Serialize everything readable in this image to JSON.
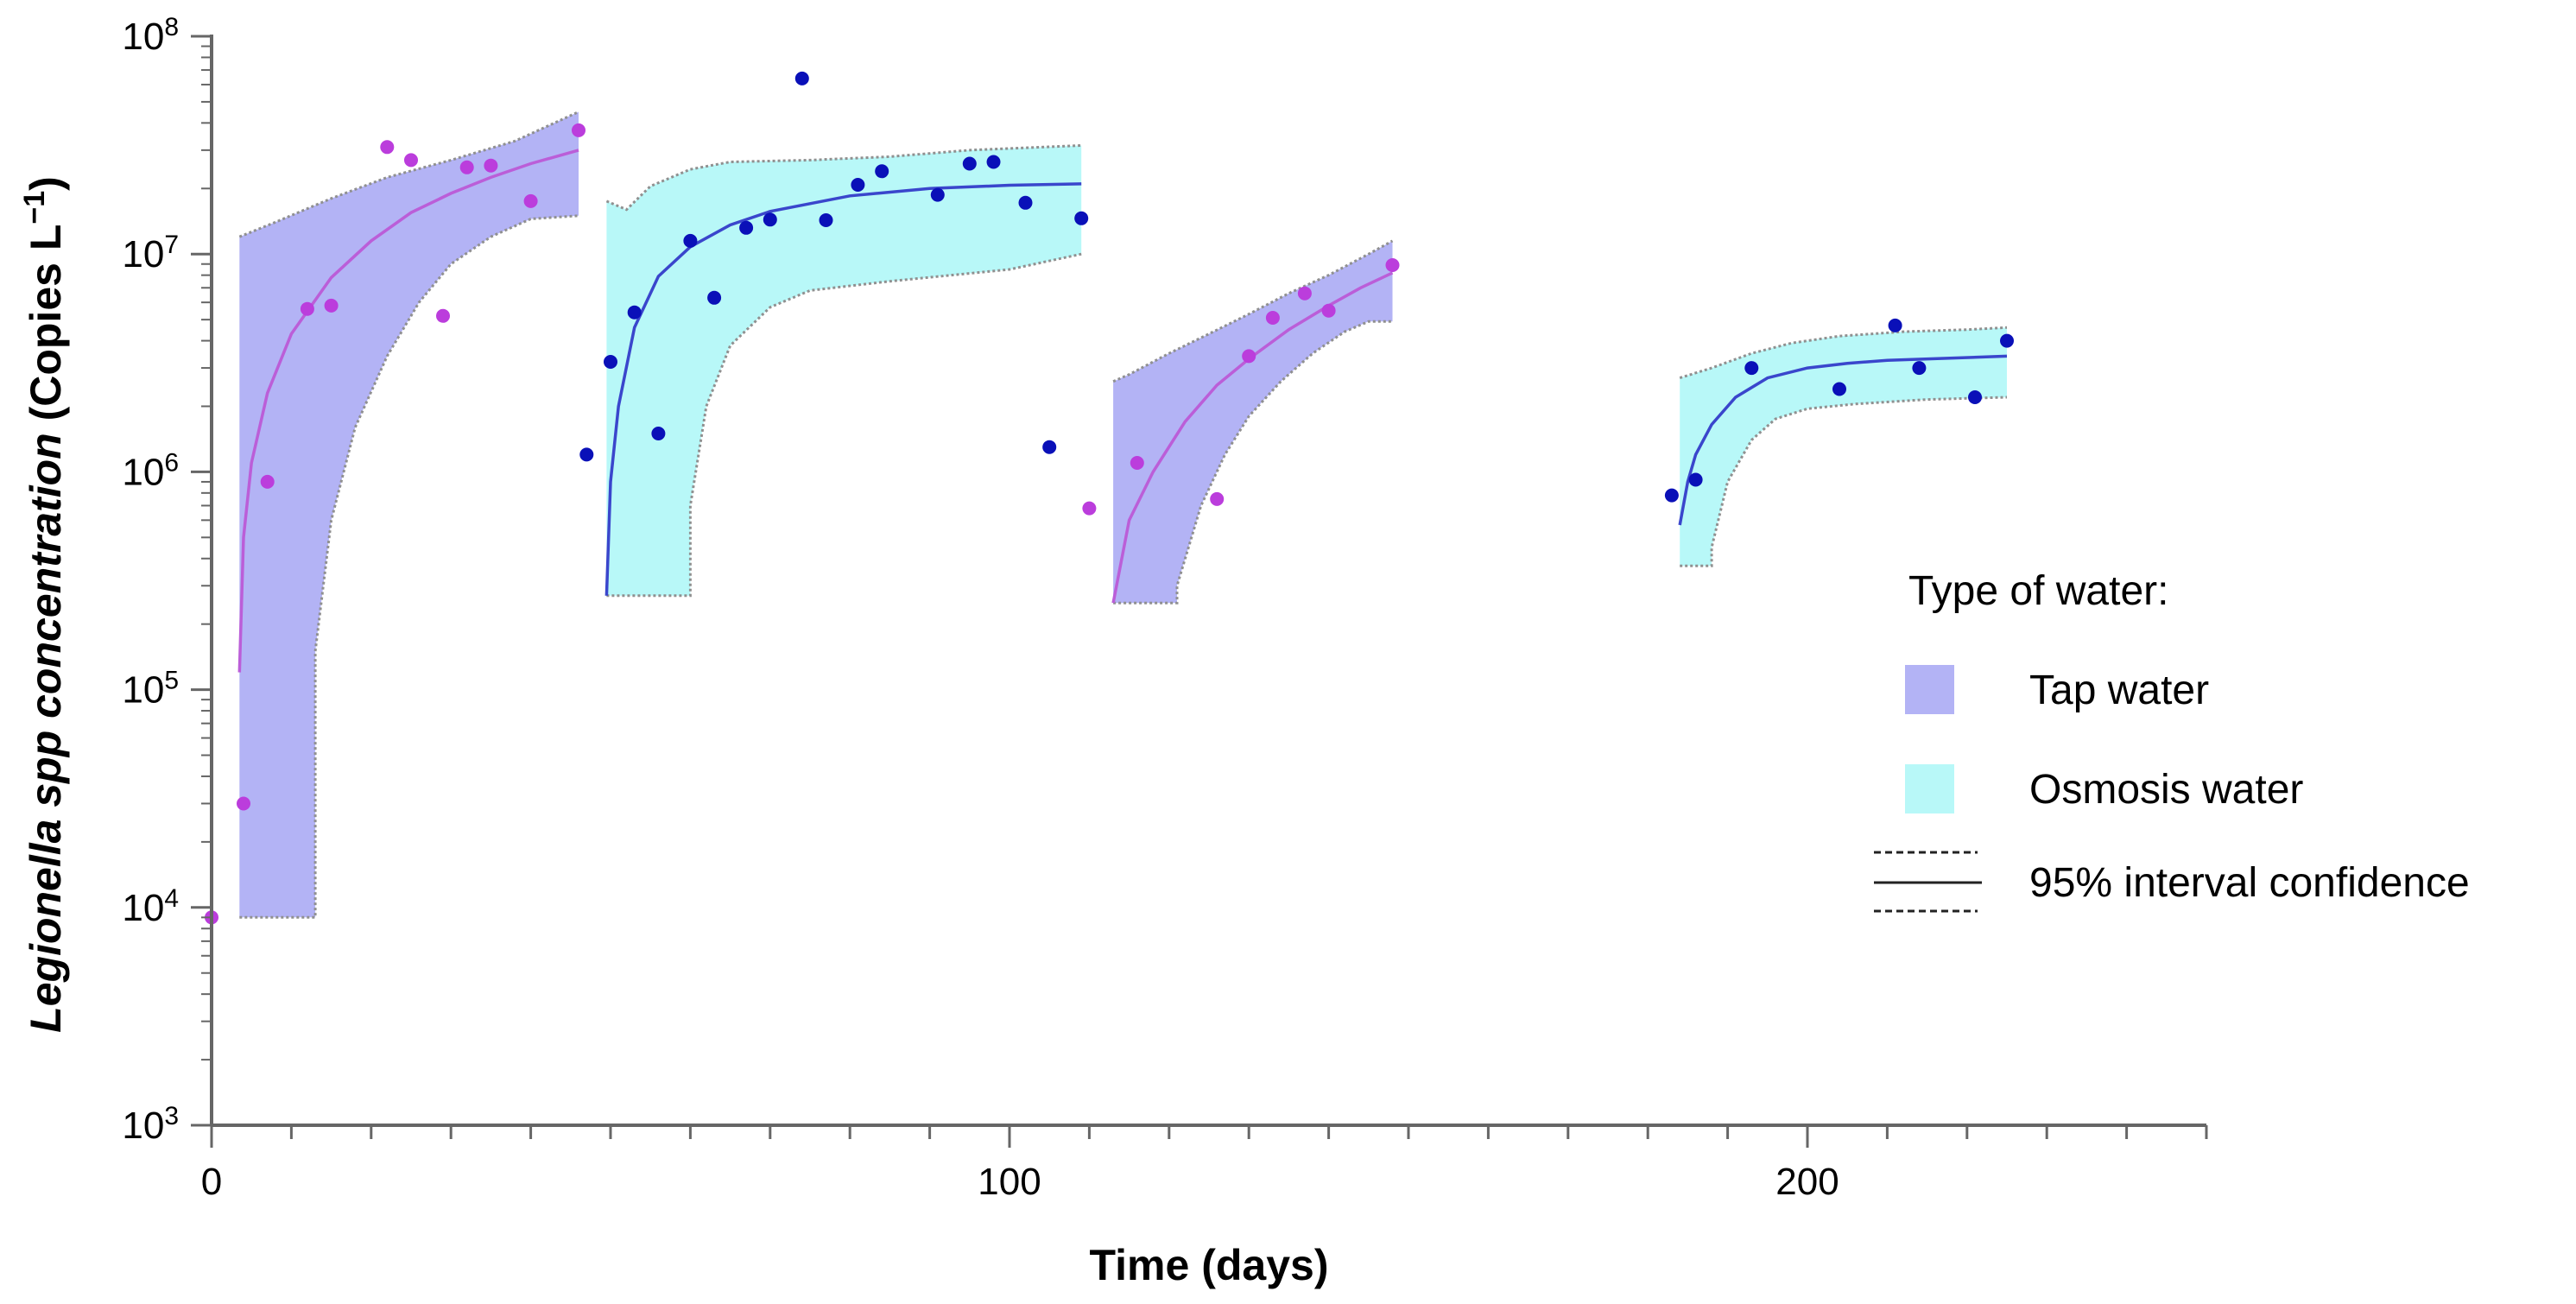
{
  "chart_data": {
    "type": "scatter",
    "xlabel": "Time (days)",
    "ylabel": {
      "italic": "Legionella spp concentration",
      "normal": " (Copies L",
      "sup": "−1",
      "close": ")"
    },
    "xlim": [
      0,
      250
    ],
    "ylim_exp": [
      3,
      8
    ],
    "x_ticks": [
      {
        "value": 0,
        "label": "0"
      },
      {
        "value": 100,
        "label": "100"
      },
      {
        "value": 200,
        "label": "200"
      }
    ],
    "x_minor_step": 10,
    "y_ticks": [
      {
        "exp": 3,
        "base": "10",
        "sup": "3"
      },
      {
        "exp": 4,
        "base": "10",
        "sup": "4"
      },
      {
        "exp": 5,
        "base": "10",
        "sup": "5"
      },
      {
        "exp": 6,
        "base": "10",
        "sup": "6"
      },
      {
        "exp": 7,
        "base": "10",
        "sup": "7"
      },
      {
        "exp": 8,
        "base": "10",
        "sup": "8"
      }
    ],
    "colors": {
      "tap_band": "#b3b3f5",
      "osmosis_band": "#b8f8f8",
      "tap_points": "#bb3ddc",
      "osmosis_points": "#0a10b8",
      "tap_line": "#bb5ed8",
      "osmosis_line": "#3a46cc",
      "ci_line": "#909090",
      "axis": "#666666"
    },
    "legend": {
      "title": "Type of water:",
      "tap_label": "Tap water",
      "osmosis_label": "Osmosis water",
      "ci_label": "95% interval confidence"
    },
    "series": [
      {
        "name": "Tap water - period 1",
        "type": "tap",
        "points": [
          [
            0,
            9000
          ],
          [
            4,
            30000
          ],
          [
            7,
            900000
          ],
          [
            12,
            5600000
          ],
          [
            15,
            5800000
          ],
          [
            22,
            31000000
          ],
          [
            25,
            27000000
          ],
          [
            29,
            5200000
          ],
          [
            32,
            25000000
          ],
          [
            35,
            25500000
          ],
          [
            40,
            17500000
          ],
          [
            46,
            37000000
          ]
        ],
        "fit": [
          [
            3.5,
            120000
          ],
          [
            4,
            500000
          ],
          [
            5,
            1100000
          ],
          [
            7,
            2300000
          ],
          [
            10,
            4300000
          ],
          [
            15,
            7800000
          ],
          [
            20,
            11500000
          ],
          [
            25,
            15500000
          ],
          [
            30,
            19000000
          ],
          [
            35,
            22500000
          ],
          [
            40,
            26000000
          ],
          [
            46,
            30000000
          ]
        ],
        "upper": [
          [
            3.5,
            12000000
          ],
          [
            8,
            14000000
          ],
          [
            15,
            18000000
          ],
          [
            22,
            22500000
          ],
          [
            30,
            27000000
          ],
          [
            38,
            33000000
          ],
          [
            46,
            45000000
          ]
        ],
        "lower": [
          [
            3.5,
            9000
          ],
          [
            13,
            9000
          ],
          [
            13,
            150000
          ],
          [
            15,
            600000
          ],
          [
            18,
            1600000
          ],
          [
            22,
            3400000
          ],
          [
            26,
            6000000
          ],
          [
            30,
            9000000
          ],
          [
            35,
            12000000
          ],
          [
            40,
            14500000
          ],
          [
            46,
            15000000
          ]
        ]
      },
      {
        "name": "Osmosis water - period 1",
        "type": "osmosis",
        "points": [
          [
            47,
            1200000
          ],
          [
            50,
            3200000
          ],
          [
            53,
            5400000
          ],
          [
            56,
            1500000
          ],
          [
            60,
            11500000
          ],
          [
            63,
            6300000
          ],
          [
            67,
            13200000
          ],
          [
            70,
            14400000
          ],
          [
            74,
            64000000
          ],
          [
            77,
            14300000
          ],
          [
            81,
            20800000
          ],
          [
            84,
            24000000
          ],
          [
            91,
            18700000
          ],
          [
            95,
            26000000
          ],
          [
            98,
            26500000
          ],
          [
            102,
            17200000
          ],
          [
            105,
            1300000
          ],
          [
            109,
            14600000
          ]
        ],
        "fit": [
          [
            49.5,
            270000
          ],
          [
            50,
            900000
          ],
          [
            51,
            2000000
          ],
          [
            53,
            4600000
          ],
          [
            56,
            7900000
          ],
          [
            60,
            10800000
          ],
          [
            65,
            13600000
          ],
          [
            70,
            15700000
          ],
          [
            80,
            18500000
          ],
          [
            90,
            20000000
          ],
          [
            100,
            20700000
          ],
          [
            109,
            21000000
          ]
        ],
        "upper": [
          [
            49.5,
            17500000
          ],
          [
            52,
            16000000
          ],
          [
            55,
            20500000
          ],
          [
            60,
            24500000
          ],
          [
            65,
            26500000
          ],
          [
            75,
            27000000
          ],
          [
            85,
            28000000
          ],
          [
            95,
            30000000
          ],
          [
            109,
            31500000
          ]
        ],
        "lower": [
          [
            49.5,
            270000
          ],
          [
            60,
            270000
          ],
          [
            60,
            700000
          ],
          [
            62,
            2000000
          ],
          [
            65,
            3800000
          ],
          [
            70,
            5700000
          ],
          [
            75,
            6800000
          ],
          [
            85,
            7500000
          ],
          [
            100,
            8500000
          ],
          [
            109,
            10000000
          ]
        ]
      },
      {
        "name": "Tap water - period 2",
        "type": "tap",
        "points": [
          [
            110,
            680000
          ],
          [
            116,
            1100000
          ],
          [
            126,
            750000
          ],
          [
            130,
            3400000
          ],
          [
            133,
            5100000
          ],
          [
            137,
            6600000
          ],
          [
            140,
            5500000
          ],
          [
            148,
            8900000
          ]
        ],
        "fit": [
          [
            113,
            250000
          ],
          [
            115,
            600000
          ],
          [
            118,
            1000000
          ],
          [
            122,
            1700000
          ],
          [
            126,
            2500000
          ],
          [
            130,
            3300000
          ],
          [
            135,
            4500000
          ],
          [
            140,
            5800000
          ],
          [
            144,
            7000000
          ],
          [
            148,
            8200000
          ]
        ],
        "upper": [
          [
            113,
            2600000
          ],
          [
            115,
            2800000
          ],
          [
            120,
            3500000
          ],
          [
            125,
            4300000
          ],
          [
            130,
            5300000
          ],
          [
            135,
            6600000
          ],
          [
            140,
            8000000
          ],
          [
            145,
            10000000
          ],
          [
            148,
            11500000
          ]
        ],
        "lower": [
          [
            113,
            250000
          ],
          [
            121,
            250000
          ],
          [
            121,
            300000
          ],
          [
            124,
            700000
          ],
          [
            127,
            1200000
          ],
          [
            130,
            1800000
          ],
          [
            134,
            2600000
          ],
          [
            138,
            3500000
          ],
          [
            142,
            4400000
          ],
          [
            145,
            4900000
          ],
          [
            148,
            4900000
          ]
        ]
      },
      {
        "name": "Osmosis water - period 2",
        "type": "osmosis",
        "points": [
          [
            183,
            780000
          ],
          [
            186,
            920000
          ],
          [
            193,
            3000000
          ],
          [
            204,
            2400000
          ],
          [
            211,
            4700000
          ],
          [
            214,
            3000000
          ],
          [
            221,
            2200000
          ],
          [
            225,
            4000000
          ]
        ],
        "fit": [
          [
            184,
            570000
          ],
          [
            185,
            900000
          ],
          [
            186,
            1200000
          ],
          [
            188,
            1650000
          ],
          [
            191,
            2200000
          ],
          [
            195,
            2700000
          ],
          [
            200,
            3000000
          ],
          [
            205,
            3150000
          ],
          [
            210,
            3250000
          ],
          [
            225,
            3400000
          ]
        ],
        "upper": [
          [
            184,
            2700000
          ],
          [
            188,
            3000000
          ],
          [
            193,
            3500000
          ],
          [
            198,
            3900000
          ],
          [
            204,
            4200000
          ],
          [
            212,
            4400000
          ],
          [
            220,
            4500000
          ],
          [
            225,
            4600000
          ]
        ],
        "lower": [
          [
            184,
            370000
          ],
          [
            188,
            370000
          ],
          [
            188,
            450000
          ],
          [
            190,
            900000
          ],
          [
            193,
            1400000
          ],
          [
            196,
            1750000
          ],
          [
            200,
            1950000
          ],
          [
            206,
            2050000
          ],
          [
            215,
            2150000
          ],
          [
            225,
            2200000
          ]
        ]
      }
    ]
  }
}
